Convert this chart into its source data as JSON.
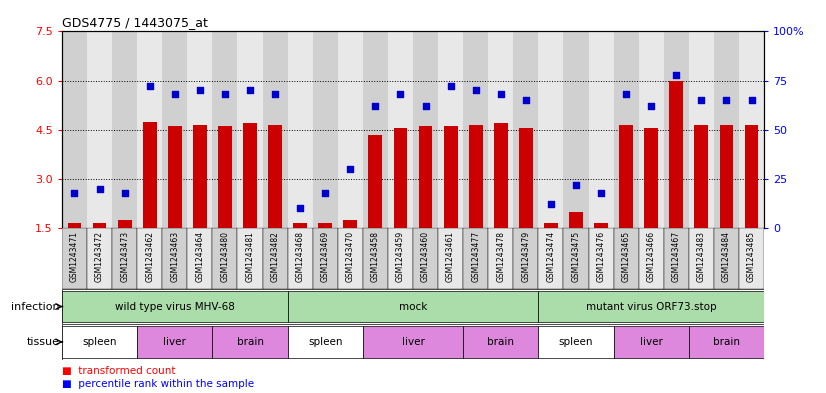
{
  "title": "GDS4775 / 1443075_at",
  "samples": [
    "GSM1243471",
    "GSM1243472",
    "GSM1243473",
    "GSM1243462",
    "GSM1243463",
    "GSM1243464",
    "GSM1243480",
    "GSM1243481",
    "GSM1243482",
    "GSM1243468",
    "GSM1243469",
    "GSM1243470",
    "GSM1243458",
    "GSM1243459",
    "GSM1243460",
    "GSM1243461",
    "GSM1243477",
    "GSM1243478",
    "GSM1243479",
    "GSM1243474",
    "GSM1243475",
    "GSM1243476",
    "GSM1243465",
    "GSM1243466",
    "GSM1243467",
    "GSM1243483",
    "GSM1243484",
    "GSM1243485"
  ],
  "transformed_count": [
    1.65,
    1.65,
    1.75,
    4.75,
    4.6,
    4.65,
    4.6,
    4.7,
    4.65,
    1.65,
    1.65,
    1.75,
    4.35,
    4.55,
    4.6,
    4.6,
    4.65,
    4.7,
    4.55,
    1.65,
    2.0,
    1.65,
    4.65,
    4.55,
    6.0,
    4.65,
    4.65,
    4.65
  ],
  "percentile": [
    18,
    20,
    18,
    72,
    68,
    70,
    68,
    70,
    68,
    10,
    18,
    30,
    62,
    68,
    62,
    72,
    70,
    68,
    65,
    12,
    22,
    18,
    68,
    62,
    78,
    65,
    65,
    65
  ],
  "ylim_left": [
    1.5,
    7.5
  ],
  "ylim_right": [
    0,
    100
  ],
  "yticks_left": [
    1.5,
    3.0,
    4.5,
    6.0,
    7.5
  ],
  "yticks_right": [
    0,
    25,
    50,
    75,
    100
  ],
  "bar_color": "#cc0000",
  "dot_color": "#0000cc",
  "infection_groups": [
    {
      "label": "wild type virus MHV-68",
      "start": 0,
      "end": 9
    },
    {
      "label": "mock",
      "start": 9,
      "end": 19
    },
    {
      "label": "mutant virus ORF73.stop",
      "start": 19,
      "end": 28
    }
  ],
  "tissue_groups": [
    {
      "label": "spleen",
      "start": 0,
      "end": 3,
      "color": "#ffffff"
    },
    {
      "label": "liver",
      "start": 3,
      "end": 6,
      "color": "#dd88dd"
    },
    {
      "label": "brain",
      "start": 6,
      "end": 9,
      "color": "#dd88dd"
    },
    {
      "label": "spleen",
      "start": 9,
      "end": 12,
      "color": "#ffffff"
    },
    {
      "label": "liver",
      "start": 12,
      "end": 16,
      "color": "#dd88dd"
    },
    {
      "label": "brain",
      "start": 16,
      "end": 19,
      "color": "#dd88dd"
    },
    {
      "label": "spleen",
      "start": 19,
      "end": 22,
      "color": "#ffffff"
    },
    {
      "label": "liver",
      "start": 22,
      "end": 25,
      "color": "#dd88dd"
    },
    {
      "label": "brain",
      "start": 25,
      "end": 28,
      "color": "#dd88dd"
    }
  ],
  "col_colors": [
    "#d0d0d0",
    "#e8e8e8"
  ],
  "infection_color": "#aaddaa",
  "grid_color": "#000000",
  "grid_style": "dotted"
}
